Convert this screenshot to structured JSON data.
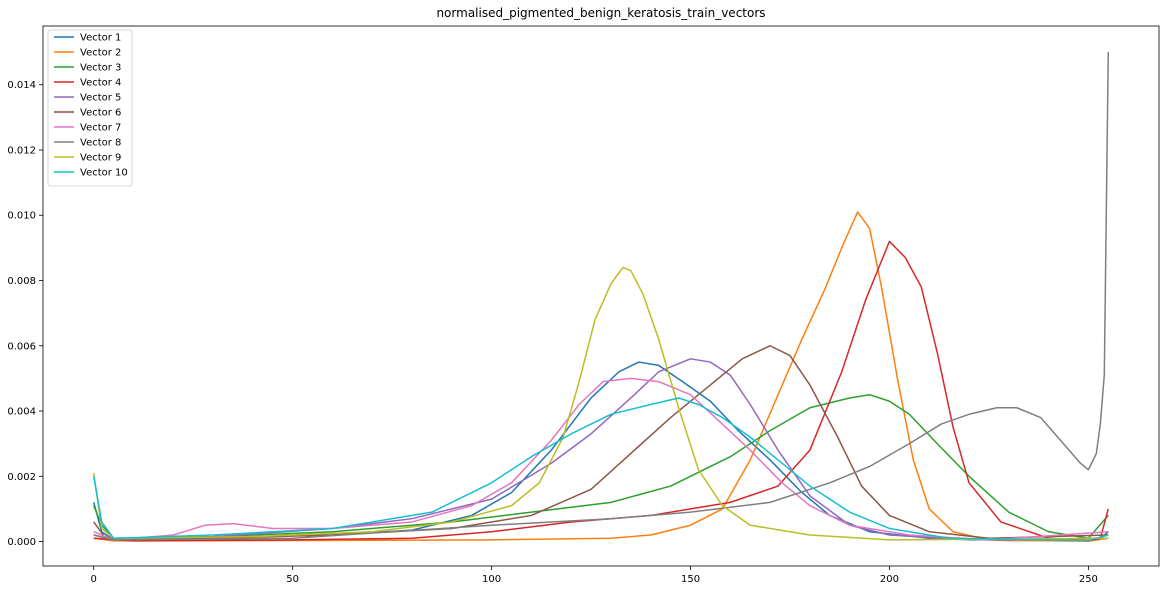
{
  "chart_data": {
    "type": "line",
    "title": "normalised_pigmented_benign_keratosis_train_vectors",
    "xlabel": "",
    "ylabel": "",
    "xlim": [
      -12.75,
      267.75
    ],
    "ylim": [
      -0.00075,
      0.0158
    ],
    "xticks": [
      0,
      50,
      100,
      150,
      200,
      250
    ],
    "yticks": [
      0.0,
      0.002,
      0.004,
      0.006,
      0.008,
      0.01,
      0.012,
      0.014
    ],
    "ytick_labels": [
      "0.000",
      "0.002",
      "0.004",
      "0.006",
      "0.008",
      "0.010",
      "0.012",
      "0.014"
    ],
    "grid": false,
    "legend_position": "upper-left",
    "series": [
      {
        "name": "Vector 1",
        "color": "#1f77b4",
        "points": [
          [
            0,
            0.0012
          ],
          [
            2,
            0.0003
          ],
          [
            5,
            5e-05
          ],
          [
            40,
            0.00015
          ],
          [
            60,
            0.0002
          ],
          [
            80,
            0.00035
          ],
          [
            95,
            0.0008
          ],
          [
            105,
            0.0015
          ],
          [
            115,
            0.0028
          ],
          [
            125,
            0.0044
          ],
          [
            132,
            0.0052
          ],
          [
            137,
            0.0055
          ],
          [
            142,
            0.0054
          ],
          [
            148,
            0.0049
          ],
          [
            155,
            0.0043
          ],
          [
            162,
            0.0034
          ],
          [
            170,
            0.0025
          ],
          [
            178,
            0.0015
          ],
          [
            185,
            0.0008
          ],
          [
            195,
            0.0003
          ],
          [
            210,
            0.0001
          ],
          [
            230,
            3e-05
          ],
          [
            250,
            3e-05
          ],
          [
            253,
            8e-05
          ],
          [
            255,
            0.0003
          ]
        ]
      },
      {
        "name": "Vector 2",
        "color": "#ff7f0e",
        "points": [
          [
            0,
            0.0001
          ],
          [
            5,
            2e-05
          ],
          [
            50,
            3e-05
          ],
          [
            100,
            5e-05
          ],
          [
            130,
            0.0001
          ],
          [
            140,
            0.0002
          ],
          [
            150,
            0.0005
          ],
          [
            158,
            0.001
          ],
          [
            165,
            0.0025
          ],
          [
            172,
            0.0045
          ],
          [
            178,
            0.0062
          ],
          [
            184,
            0.0078
          ],
          [
            188,
            0.009
          ],
          [
            192,
            0.0101
          ],
          [
            195,
            0.0096
          ],
          [
            198,
            0.0078
          ],
          [
            202,
            0.005
          ],
          [
            206,
            0.0025
          ],
          [
            210,
            0.001
          ],
          [
            216,
            0.0003
          ],
          [
            225,
            5e-05
          ],
          [
            250,
            1e-05
          ],
          [
            255,
            0.0001
          ]
        ]
      },
      {
        "name": "Vector 3",
        "color": "#2ca02c",
        "points": [
          [
            0,
            0.0011
          ],
          [
            2,
            0.0005
          ],
          [
            5,
            0.0001
          ],
          [
            30,
            0.00015
          ],
          [
            60,
            0.0003
          ],
          [
            90,
            0.0006
          ],
          [
            110,
            0.0009
          ],
          [
            130,
            0.0012
          ],
          [
            145,
            0.0017
          ],
          [
            160,
            0.0026
          ],
          [
            170,
            0.0034
          ],
          [
            180,
            0.0041
          ],
          [
            190,
            0.0044
          ],
          [
            195,
            0.0045
          ],
          [
            200,
            0.0043
          ],
          [
            205,
            0.0039
          ],
          [
            212,
            0.003
          ],
          [
            220,
            0.002
          ],
          [
            230,
            0.0009
          ],
          [
            240,
            0.0003
          ],
          [
            250,
            0.0001
          ],
          [
            255,
            0.0008
          ]
        ]
      },
      {
        "name": "Vector 4",
        "color": "#d62728",
        "points": [
          [
            0,
            0.0001
          ],
          [
            10,
            2e-05
          ],
          [
            50,
            5e-05
          ],
          [
            80,
            0.0001
          ],
          [
            100,
            0.0003
          ],
          [
            120,
            0.0006
          ],
          [
            140,
            0.0008
          ],
          [
            160,
            0.0012
          ],
          [
            172,
            0.0017
          ],
          [
            180,
            0.0028
          ],
          [
            188,
            0.0052
          ],
          [
            194,
            0.0074
          ],
          [
            200,
            0.0092
          ],
          [
            204,
            0.0087
          ],
          [
            208,
            0.0078
          ],
          [
            212,
            0.0058
          ],
          [
            216,
            0.0035
          ],
          [
            220,
            0.0018
          ],
          [
            228,
            0.0006
          ],
          [
            240,
            0.0001
          ],
          [
            250,
            3e-05
          ],
          [
            253,
            0.0001
          ],
          [
            255,
            0.001
          ]
        ]
      },
      {
        "name": "Vector 5",
        "color": "#9467bd",
        "points": [
          [
            0,
            0.0002
          ],
          [
            5,
            5e-05
          ],
          [
            30,
            0.00015
          ],
          [
            60,
            0.0004
          ],
          [
            80,
            0.0007
          ],
          [
            100,
            0.0013
          ],
          [
            115,
            0.0024
          ],
          [
            125,
            0.0033
          ],
          [
            135,
            0.0044
          ],
          [
            142,
            0.0052
          ],
          [
            150,
            0.0056
          ],
          [
            155,
            0.0055
          ],
          [
            160,
            0.0051
          ],
          [
            165,
            0.0042
          ],
          [
            172,
            0.0028
          ],
          [
            180,
            0.0014
          ],
          [
            190,
            0.0005
          ],
          [
            200,
            0.0002
          ],
          [
            220,
            5e-05
          ],
          [
            255,
            0.0001
          ]
        ]
      },
      {
        "name": "Vector 6",
        "color": "#8c564b",
        "points": [
          [
            0,
            0.0006
          ],
          [
            3,
            0.0001
          ],
          [
            30,
            0.0001
          ],
          [
            60,
            0.0002
          ],
          [
            90,
            0.0004
          ],
          [
            110,
            0.0008
          ],
          [
            125,
            0.0016
          ],
          [
            135,
            0.0027
          ],
          [
            145,
            0.0038
          ],
          [
            155,
            0.0048
          ],
          [
            163,
            0.0056
          ],
          [
            170,
            0.006
          ],
          [
            175,
            0.0057
          ],
          [
            180,
            0.0048
          ],
          [
            187,
            0.0032
          ],
          [
            193,
            0.0017
          ],
          [
            200,
            0.0008
          ],
          [
            210,
            0.0003
          ],
          [
            225,
            0.0001
          ],
          [
            255,
            0.0002
          ]
        ]
      },
      {
        "name": "Vector 7",
        "color": "#e377c2",
        "points": [
          [
            0,
            0.0003
          ],
          [
            5,
            5e-05
          ],
          [
            20,
            0.0002
          ],
          [
            28,
            0.0005
          ],
          [
            35,
            0.00055
          ],
          [
            45,
            0.0004
          ],
          [
            60,
            0.0004
          ],
          [
            80,
            0.0006
          ],
          [
            95,
            0.0011
          ],
          [
            105,
            0.0018
          ],
          [
            115,
            0.0031
          ],
          [
            122,
            0.0042
          ],
          [
            128,
            0.0049
          ],
          [
            135,
            0.005
          ],
          [
            142,
            0.0049
          ],
          [
            150,
            0.0045
          ],
          [
            158,
            0.0036
          ],
          [
            165,
            0.0028
          ],
          [
            173,
            0.0018
          ],
          [
            180,
            0.0011
          ],
          [
            190,
            0.0005
          ],
          [
            205,
            0.0002
          ],
          [
            225,
            5e-05
          ],
          [
            255,
            0.0003
          ]
        ]
      },
      {
        "name": "Vector 8",
        "color": "#7f7f7f",
        "points": [
          [
            0,
            0.0002
          ],
          [
            5,
            5e-05
          ],
          [
            50,
            0.0001
          ],
          [
            100,
            0.0005
          ],
          [
            130,
            0.0007
          ],
          [
            150,
            0.0009
          ],
          [
            170,
            0.0012
          ],
          [
            185,
            0.0018
          ],
          [
            195,
            0.0023
          ],
          [
            205,
            0.003
          ],
          [
            213,
            0.0036
          ],
          [
            220,
            0.0039
          ],
          [
            227,
            0.0041
          ],
          [
            232,
            0.0041
          ],
          [
            238,
            0.0038
          ],
          [
            243,
            0.0031
          ],
          [
            248,
            0.0024
          ],
          [
            250,
            0.0022
          ],
          [
            252,
            0.0027
          ],
          [
            253,
            0.0036
          ],
          [
            254,
            0.0051
          ],
          [
            255,
            0.015
          ]
        ]
      },
      {
        "name": "Vector 9",
        "color": "#bcbd22",
        "points": [
          [
            0,
            0.0021
          ],
          [
            2,
            0.0004
          ],
          [
            5,
            0.0001
          ],
          [
            40,
            0.00015
          ],
          [
            70,
            0.0003
          ],
          [
            90,
            0.0006
          ],
          [
            105,
            0.0011
          ],
          [
            112,
            0.0018
          ],
          [
            118,
            0.0032
          ],
          [
            122,
            0.0049
          ],
          [
            126,
            0.0068
          ],
          [
            130,
            0.0079
          ],
          [
            133,
            0.0084
          ],
          [
            135,
            0.0083
          ],
          [
            138,
            0.0076
          ],
          [
            142,
            0.0062
          ],
          [
            147,
            0.0041
          ],
          [
            152,
            0.0022
          ],
          [
            158,
            0.0011
          ],
          [
            165,
            0.0005
          ],
          [
            180,
            0.0002
          ],
          [
            200,
            5e-05
          ],
          [
            255,
            0.0001
          ]
        ]
      },
      {
        "name": "Vector 10",
        "color": "#17becf",
        "points": [
          [
            0,
            0.002
          ],
          [
            2,
            0.0006
          ],
          [
            5,
            0.0001
          ],
          [
            30,
            0.0002
          ],
          [
            60,
            0.0004
          ],
          [
            85,
            0.0009
          ],
          [
            100,
            0.0018
          ],
          [
            110,
            0.0026
          ],
          [
            120,
            0.0033
          ],
          [
            130,
            0.0039
          ],
          [
            140,
            0.0042
          ],
          [
            147,
            0.0044
          ],
          [
            152,
            0.0042
          ],
          [
            158,
            0.0038
          ],
          [
            165,
            0.0032
          ],
          [
            172,
            0.0025
          ],
          [
            180,
            0.0017
          ],
          [
            190,
            0.0009
          ],
          [
            200,
            0.0004
          ],
          [
            215,
            0.0001
          ],
          [
            250,
            3e-05
          ],
          [
            255,
            0.0002
          ]
        ]
      }
    ]
  }
}
